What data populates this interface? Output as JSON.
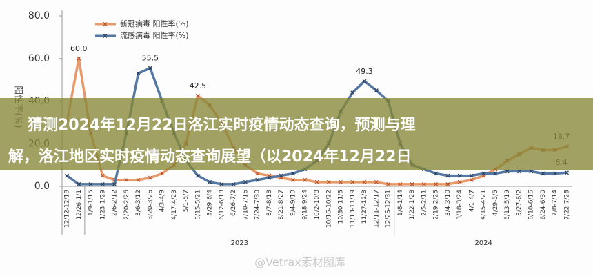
{
  "chart_data": {
    "type": "line",
    "y_label": "阳性率(%)",
    "categories": [
      "12/12-12/18",
      "12/26-1/1",
      "1/9-1/15",
      "1/23-1/29",
      "2/6-2/12",
      "2/20-2/26",
      "3/6-3/12",
      "3/20-3/26",
      "4/3-4/9",
      "4/17-4/23",
      "5/1-5/7",
      "5/15-5/21",
      "5/29-6/4",
      "6/12-6/18",
      "6/26-7/2",
      "7/10-7/16",
      "7/24-7/30",
      "8/7-8/13",
      "8/21-8/27",
      "9/4-9/10",
      "9/18-9/24",
      "10/2-10/8",
      "10/16-10/22",
      "10/30-11/5",
      "11/13-11/19",
      "11/27-12/3",
      "12/11-12/17",
      "12/25-12/31",
      "1/8-1/14",
      "1/22-1/28",
      "2/5-2/11",
      "2/19-2/25",
      "3/4-3/10",
      "3/18-3/24",
      "4/1-4/7",
      "4/15-4/21",
      "4/29-5/5",
      "5/13-5/19",
      "5/27-6/2",
      "6/10-6/16",
      "6/24-6/30",
      "7/8-7/14",
      "7/22-7/28"
    ],
    "x_groups": [
      "2023",
      "2024"
    ],
    "series": [
      {
        "name": "新冠病毒 阳性率(%)",
        "color": "#e8996a",
        "marker_color": "#b5552f",
        "values": [
          30,
          60,
          25,
          5,
          3,
          3,
          3,
          4,
          6,
          10,
          20,
          42.5,
          38,
          30,
          18,
          10,
          6,
          5,
          4,
          3,
          3,
          2,
          2,
          2,
          2,
          2,
          2,
          1,
          1,
          1,
          1,
          1,
          1,
          2,
          3,
          5,
          8,
          12,
          15,
          18,
          17,
          17,
          18.7
        ],
        "value_labels": [
          null,
          "60.0",
          null,
          null,
          null,
          null,
          null,
          null,
          null,
          null,
          null,
          "42.5",
          null,
          null,
          null,
          null,
          null,
          null,
          null,
          null,
          null,
          null,
          null,
          null,
          null,
          null,
          null,
          null,
          null,
          null,
          null,
          null,
          null,
          null,
          null,
          null,
          null,
          null,
          null,
          null,
          null,
          null,
          "18.7"
        ]
      },
      {
        "name": "流感病毒 阳性率(%)",
        "color": "#5478a3",
        "marker_color": "#2b3f5c",
        "values": [
          5,
          1,
          1,
          1,
          1,
          25,
          53,
          55.5,
          40,
          25,
          12,
          5,
          2,
          1,
          1,
          2,
          3,
          4,
          5,
          6,
          8,
          12,
          20,
          35,
          44,
          49.3,
          45,
          40,
          20,
          10,
          8,
          6,
          5,
          5,
          5,
          6,
          6,
          7,
          7,
          7,
          6,
          6,
          6.4
        ],
        "value_labels": [
          null,
          null,
          null,
          null,
          null,
          null,
          null,
          "55.5",
          null,
          null,
          null,
          null,
          null,
          null,
          null,
          null,
          null,
          null,
          null,
          null,
          null,
          null,
          null,
          null,
          null,
          "49.3",
          null,
          null,
          null,
          null,
          null,
          null,
          null,
          null,
          null,
          null,
          null,
          null,
          null,
          null,
          null,
          null,
          "6.4"
        ]
      }
    ],
    "ylim": [
      0,
      80
    ],
    "yticks": [
      {
        "value": 0,
        "label": "0.0"
      },
      {
        "value": 20,
        "label": "20.0"
      },
      {
        "value": 40,
        "label": "40.0"
      },
      {
        "value": 60,
        "label": "60.0"
      },
      {
        "value": 80,
        "label": "80.0"
      }
    ]
  },
  "banner": {
    "lines": [
      "猜测2024年12月22日洛江实时疫情动态查询，预测与理",
      "解，洛江地区实时疫情动态查询展望（以2024年12月22日"
    ]
  },
  "watermark": "@Vetrax素材图库"
}
